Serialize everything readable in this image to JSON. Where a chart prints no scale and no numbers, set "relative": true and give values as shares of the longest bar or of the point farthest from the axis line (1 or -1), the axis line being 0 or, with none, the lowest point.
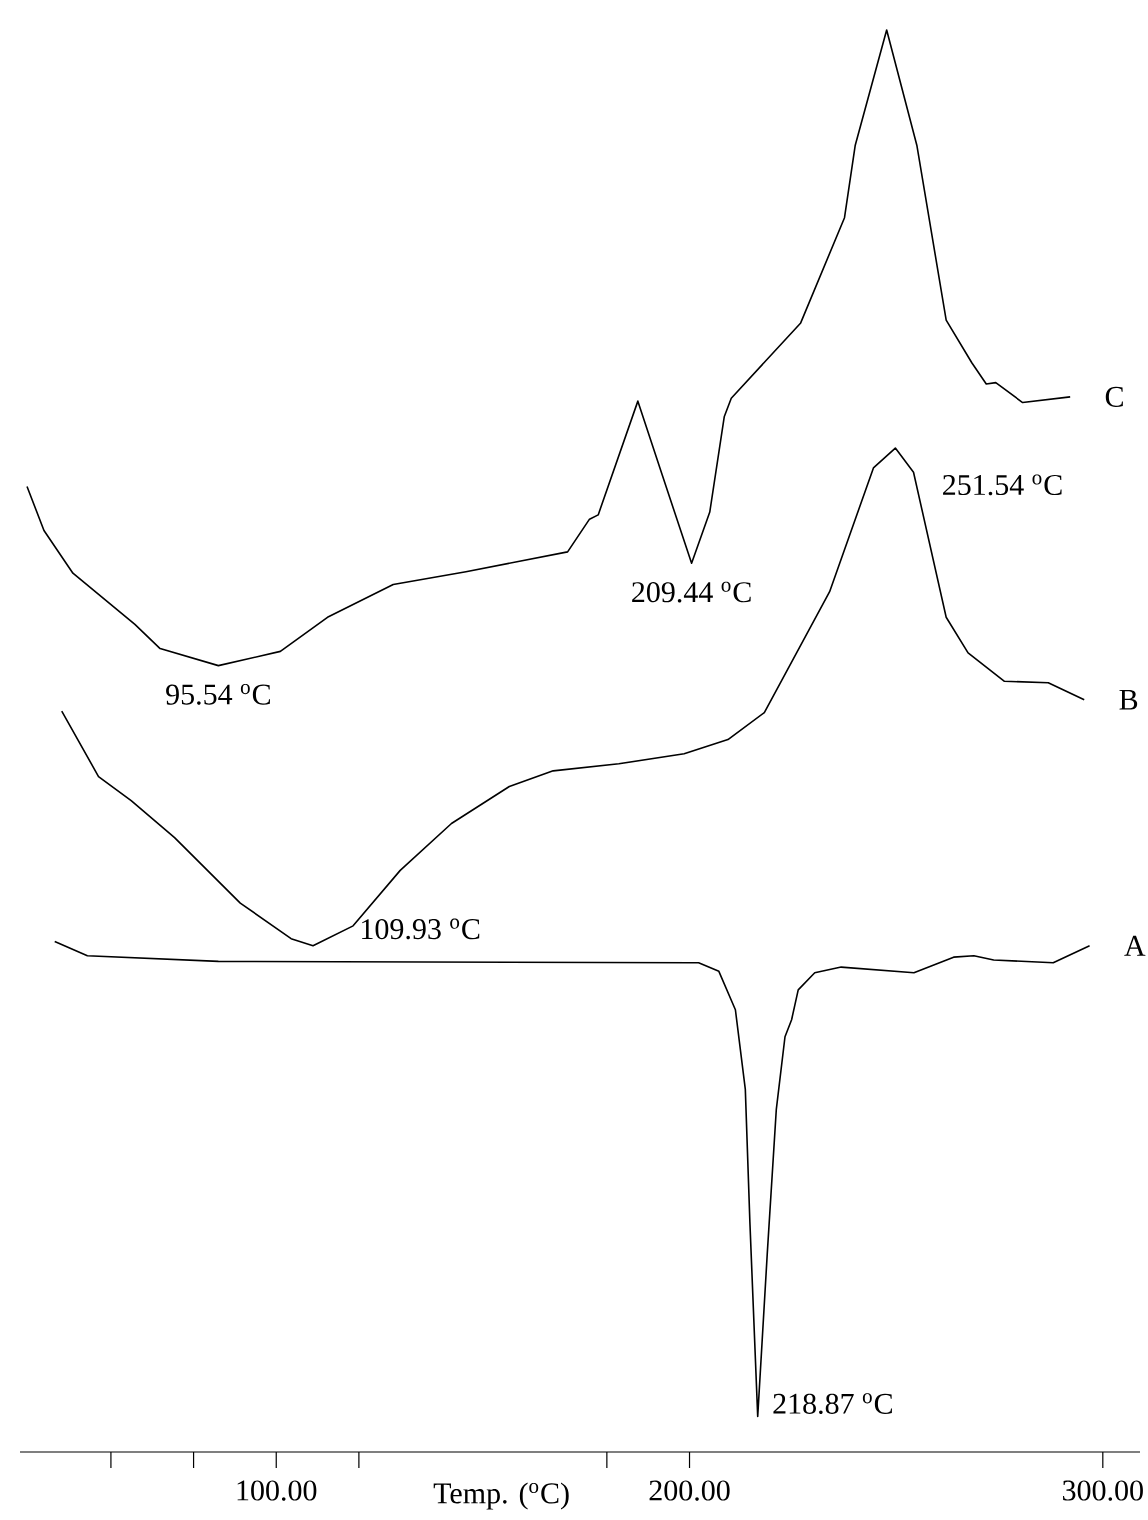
{
  "chart_data": {
    "type": "line",
    "relative": true,
    "xlabel": "Temp. ($^{o}$C)",
    "xlim": [
      38,
      309
    ],
    "xticks": [
      {
        "value": 60,
        "label": null
      },
      {
        "value": 80,
        "label": null
      },
      {
        "value": 100,
        "label": "100.00"
      },
      {
        "value": 120,
        "label": null
      },
      {
        "value": 180,
        "label": null
      },
      {
        "value": 200,
        "label": "200.00"
      },
      {
        "value": 300,
        "label": "300.00"
      }
    ],
    "legend": false,
    "grid": false,
    "marker": "none",
    "line_style": "solid",
    "series": [
      {
        "name": "C",
        "color": "#000000",
        "x": [
          39.7,
          43.8,
          50.8,
          65.8,
          71.9,
          86.0,
          101.0,
          112.4,
          128.3,
          145.9,
          170.5,
          175.8,
          177.9,
          187.5,
          193.4,
          200.5,
          204.9,
          208.4,
          210.1,
          226.9,
          237.5,
          240.1,
          247.7,
          255.0,
          262.1,
          268.3,
          271.8,
          274.1,
          280.6,
          292.1
        ],
        "values": [
          0.679,
          0.648,
          0.618,
          0.582,
          0.565,
          0.553,
          0.563,
          0.587,
          0.61,
          0.619,
          0.633,
          0.656,
          0.659,
          0.739,
          0.687,
          0.625,
          0.661,
          0.728,
          0.741,
          0.794,
          0.868,
          0.919,
          1,
          0.919,
          0.796,
          0.766,
          0.751,
          0.752,
          0.738,
          0.742
        ]
      },
      {
        "name": "B",
        "color": "#000000",
        "x": [
          48.1,
          57.0,
          64.9,
          75.4,
          91.3,
          103.6,
          108.9,
          118.6,
          130.0,
          142.4,
          156.4,
          167.0,
          182.9,
          198.7,
          209.3,
          218.1,
          233.9,
          244.5,
          249.8,
          254.2,
          262.1,
          267.4,
          276.2,
          286.8,
          295.5
        ],
        "values": [
          0.521,
          0.475,
          0.458,
          0.432,
          0.386,
          0.361,
          0.356,
          0.37,
          0.409,
          0.442,
          0.468,
          0.479,
          0.484,
          0.491,
          0.501,
          0.52,
          0.605,
          0.692,
          0.706,
          0.689,
          0.587,
          0.562,
          0.542,
          0.541,
          0.529
        ]
      },
      {
        "name": "A",
        "color": "#000000",
        "x": [
          46.4,
          54.3,
          86.0,
          200.5,
          202.2,
          207.1,
          211.1,
          213.5,
          214.6,
          216.5,
          218.8,
          221.0,
          223.1,
          224.7,
          226.3,
          230.3,
          236.7,
          254.3,
          263.9,
          268.8,
          273.6,
          288.0,
          296.8
        ],
        "values": [
          0.359,
          0.349,
          0.345,
          0.344,
          0.344,
          0.338,
          0.311,
          0.255,
          0.162,
          0.025,
          0.139,
          0.241,
          0.292,
          0.304,
          0.325,
          0.337,
          0.341,
          0.337,
          0.348,
          0.349,
          0.346,
          0.344,
          0.356
        ]
      }
    ],
    "annotations": [
      {
        "text": "95.54 $^{o}$C",
        "x": 86.0,
        "y": 0.553
      },
      {
        "text": "209.44 $^{o}$C",
        "x": 200.5,
        "y": 0.625
      },
      {
        "text": "251.54 $^{o}$C",
        "x": 249.8,
        "y": 0.706
      },
      {
        "text": "109.93 $^{o}$C",
        "x": 108.9,
        "y": 0.356
      },
      {
        "text": "218.87 $^{o}$C",
        "x": 216.5,
        "y": 0.025
      }
    ]
  }
}
